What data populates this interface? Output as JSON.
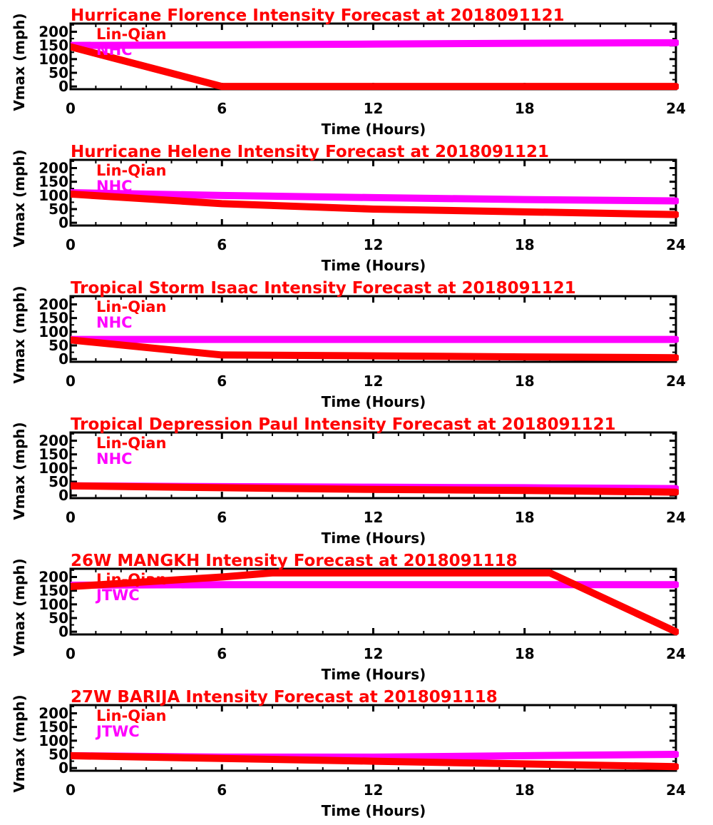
{
  "chart_data": [
    {
      "type": "line",
      "title": "Hurricane Florence Intensity Forecast at 2018091121",
      "xlabel": "Time (Hours)",
      "ylabel": "Vmax (mph)",
      "xlim": [
        0,
        24
      ],
      "ylim": [
        -10,
        230
      ],
      "xticks": [
        "0",
        "6",
        "12",
        "18",
        "24"
      ],
      "yticks": [
        "0",
        "50",
        "100",
        "150",
        "200"
      ],
      "legend_placement": "top-left",
      "series": [
        {
          "name": "Lin-Qian",
          "color": "#ff0000",
          "x": [
            0,
            6,
            12,
            18,
            24
          ],
          "y": [
            145,
            0,
            0,
            0,
            0
          ]
        },
        {
          "name": "NHC",
          "color": "#ff00ff",
          "x": [
            0,
            6,
            12,
            18,
            24
          ],
          "y": [
            150,
            152,
            155,
            158,
            160
          ]
        }
      ]
    },
    {
      "type": "line",
      "title": "Hurricane Helene Intensity Forecast at 2018091121",
      "xlabel": "Time (Hours)",
      "ylabel": "Vmax (mph)",
      "xlim": [
        0,
        24
      ],
      "ylim": [
        -10,
        230
      ],
      "xticks": [
        "0",
        "6",
        "12",
        "18",
        "24"
      ],
      "yticks": [
        "0",
        "50",
        "100",
        "150",
        "200"
      ],
      "legend_placement": "top-left",
      "series": [
        {
          "name": "Lin-Qian",
          "color": "#ff0000",
          "x": [
            0,
            6,
            12,
            18,
            24
          ],
          "y": [
            105,
            70,
            50,
            40,
            30
          ]
        },
        {
          "name": "NHC",
          "color": "#ff00ff",
          "x": [
            0,
            6,
            12,
            18,
            24
          ],
          "y": [
            110,
            100,
            92,
            85,
            80
          ]
        }
      ]
    },
    {
      "type": "line",
      "title": "Tropical Storm Isaac Intensity Forecast at 2018091121",
      "xlabel": "Time (Hours)",
      "ylabel": "Vmax (mph)",
      "xlim": [
        0,
        24
      ],
      "ylim": [
        -10,
        230
      ],
      "xticks": [
        "0",
        "6",
        "12",
        "18",
        "24"
      ],
      "yticks": [
        "0",
        "50",
        "100",
        "150",
        "200"
      ],
      "legend_placement": "top-left",
      "series": [
        {
          "name": "Lin-Qian",
          "color": "#ff0000",
          "x": [
            0,
            6,
            12,
            18,
            24
          ],
          "y": [
            70,
            15,
            12,
            8,
            5
          ]
        },
        {
          "name": "NHC",
          "color": "#ff00ff",
          "x": [
            0,
            6,
            12,
            18,
            24
          ],
          "y": [
            72,
            72,
            72,
            72,
            72
          ]
        }
      ]
    },
    {
      "type": "line",
      "title": "Tropical Depression Paul Intensity Forecast at 2018091121",
      "xlabel": "Time (Hours)",
      "ylabel": "Vmax (mph)",
      "xlim": [
        0,
        24
      ],
      "ylim": [
        -10,
        230
      ],
      "xticks": [
        "0",
        "6",
        "12",
        "18",
        "24"
      ],
      "yticks": [
        "0",
        "50",
        "100",
        "150",
        "200"
      ],
      "legend_placement": "top-left",
      "series": [
        {
          "name": "Lin-Qian",
          "color": "#ff0000",
          "x": [
            0,
            6,
            12,
            18,
            24
          ],
          "y": [
            35,
            28,
            22,
            18,
            12
          ]
        },
        {
          "name": "NHC",
          "color": "#ff00ff",
          "x": [
            0,
            6,
            12,
            18,
            24
          ],
          "y": [
            35,
            32,
            30,
            28,
            25
          ]
        }
      ]
    },
    {
      "type": "line",
      "title": "26W MANGKH Intensity Forecast at 2018091118",
      "xlabel": "Time (Hours)",
      "ylabel": "Vmax (mph)",
      "xlim": [
        0,
        24
      ],
      "ylim": [
        -10,
        230
      ],
      "xticks": [
        "0",
        "6",
        "12",
        "18",
        "24"
      ],
      "yticks": [
        "0",
        "50",
        "100",
        "150",
        "200"
      ],
      "legend_placement": "top-left",
      "series": [
        {
          "name": "Lin-Qian",
          "color": "#ff0000",
          "x": [
            0,
            6,
            8,
            19,
            24
          ],
          "y": [
            165,
            200,
            215,
            215,
            0
          ]
        },
        {
          "name": "JTWC",
          "color": "#ff00ff",
          "x": [
            0,
            6,
            12,
            18,
            24
          ],
          "y": [
            170,
            172,
            172,
            172,
            172
          ]
        }
      ]
    },
    {
      "type": "line",
      "title": "27W BARIJA Intensity Forecast at 2018091118",
      "xlabel": "Time (Hours)",
      "ylabel": "Vmax (mph)",
      "xlim": [
        0,
        24
      ],
      "ylim": [
        -10,
        230
      ],
      "xticks": [
        "0",
        "6",
        "12",
        "18",
        "24"
      ],
      "yticks": [
        "0",
        "50",
        "100",
        "150",
        "200"
      ],
      "legend_placement": "top-left",
      "series": [
        {
          "name": "Lin-Qian",
          "color": "#ff0000",
          "x": [
            0,
            6,
            12,
            18,
            24
          ],
          "y": [
            45,
            35,
            25,
            15,
            5
          ]
        },
        {
          "name": "JTWC",
          "color": "#ff00ff",
          "x": [
            0,
            6,
            12,
            18,
            24
          ],
          "y": [
            45,
            40,
            40,
            45,
            50
          ]
        }
      ]
    }
  ]
}
